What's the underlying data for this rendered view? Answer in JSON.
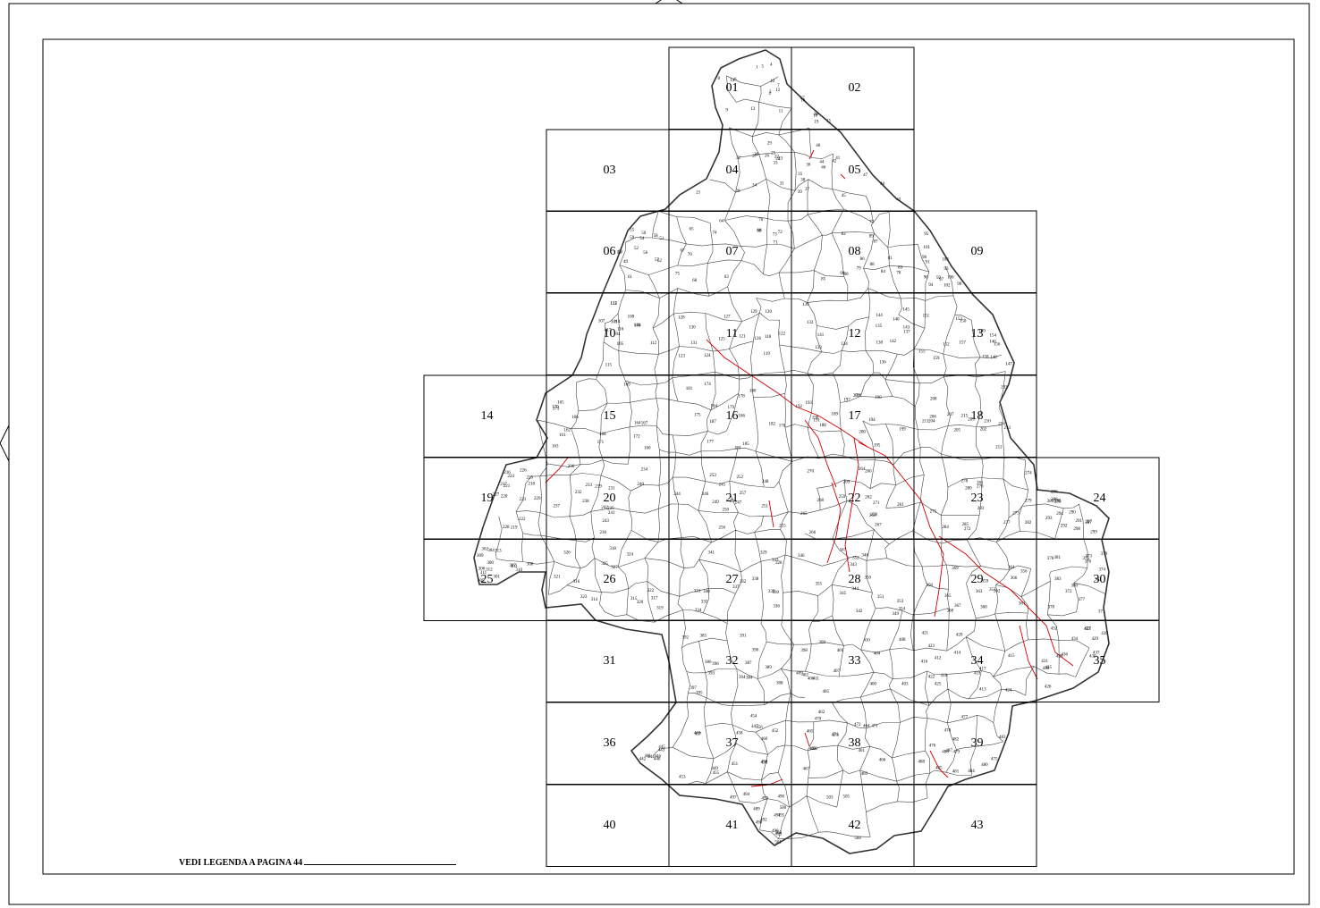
{
  "map": {
    "legend_note": "VEDI LEGENDA A PAGINA 44",
    "tiles": [
      {
        "id": "01",
        "col": 2,
        "row": 0
      },
      {
        "id": "02",
        "col": 3,
        "row": 0
      },
      {
        "id": "03",
        "col": 1,
        "row": 1
      },
      {
        "id": "04",
        "col": 2,
        "row": 1
      },
      {
        "id": "05",
        "col": 3,
        "row": 1
      },
      {
        "id": "06",
        "col": 1,
        "row": 2
      },
      {
        "id": "07",
        "col": 2,
        "row": 2
      },
      {
        "id": "08",
        "col": 3,
        "row": 2
      },
      {
        "id": "09",
        "col": 4,
        "row": 2
      },
      {
        "id": "10",
        "col": 1,
        "row": 3
      },
      {
        "id": "11",
        "col": 2,
        "row": 3
      },
      {
        "id": "12",
        "col": 3,
        "row": 3
      },
      {
        "id": "13",
        "col": 4,
        "row": 3
      },
      {
        "id": "14",
        "col": 0,
        "row": 4
      },
      {
        "id": "15",
        "col": 1,
        "row": 4
      },
      {
        "id": "16",
        "col": 2,
        "row": 4
      },
      {
        "id": "17",
        "col": 3,
        "row": 4
      },
      {
        "id": "18",
        "col": 4,
        "row": 4
      },
      {
        "id": "19",
        "col": 0,
        "row": 5
      },
      {
        "id": "20",
        "col": 1,
        "row": 5
      },
      {
        "id": "21",
        "col": 2,
        "row": 5
      },
      {
        "id": "22",
        "col": 3,
        "row": 5
      },
      {
        "id": "23",
        "col": 4,
        "row": 5
      },
      {
        "id": "24",
        "col": 5,
        "row": 5
      },
      {
        "id": "25",
        "col": 0,
        "row": 6
      },
      {
        "id": "26",
        "col": 1,
        "row": 6
      },
      {
        "id": "27",
        "col": 2,
        "row": 6
      },
      {
        "id": "28",
        "col": 3,
        "row": 6
      },
      {
        "id": "29",
        "col": 4,
        "row": 6
      },
      {
        "id": "30",
        "col": 5,
        "row": 6
      },
      {
        "id": "31",
        "col": 1,
        "row": 7
      },
      {
        "id": "32",
        "col": 2,
        "row": 7
      },
      {
        "id": "33",
        "col": 3,
        "row": 7
      },
      {
        "id": "34",
        "col": 4,
        "row": 7
      },
      {
        "id": "35",
        "col": 5,
        "row": 7
      },
      {
        "id": "36",
        "col": 1,
        "row": 8
      },
      {
        "id": "37",
        "col": 2,
        "row": 8
      },
      {
        "id": "38",
        "col": 3,
        "row": 8
      },
      {
        "id": "39",
        "col": 4,
        "row": 8
      },
      {
        "id": "40",
        "col": 1,
        "row": 9
      },
      {
        "id": "41",
        "col": 2,
        "row": 9
      },
      {
        "id": "42",
        "col": 3,
        "row": 9
      },
      {
        "id": "43",
        "col": 4,
        "row": 9
      }
    ],
    "commune_numbers": [
      "1",
      "2",
      "3",
      "4",
      "5",
      "6",
      "7",
      "8",
      "9",
      "10",
      "11",
      "12",
      "13",
      "14",
      "15",
      "16",
      "17",
      "18",
      "19",
      "20",
      "21",
      "22",
      "23",
      "24",
      "25",
      "26",
      "27",
      "28",
      "29",
      "30",
      "31",
      "32",
      "33",
      "34",
      "35",
      "36",
      "37",
      "38",
      "39",
      "40",
      "41",
      "42",
      "43",
      "44",
      "45",
      "46",
      "47",
      "48",
      "49",
      "50",
      "51",
      "52",
      "53",
      "54",
      "55",
      "56",
      "57",
      "58",
      "59",
      "60",
      "61",
      "62",
      "63",
      "64",
      "65",
      "66",
      "67",
      "68",
      "69",
      "70",
      "71",
      "72",
      "73",
      "74",
      "75",
      "76",
      "77",
      "78",
      "79",
      "80",
      "81",
      "82",
      "83",
      "84",
      "85",
      "86",
      "87",
      "88",
      "89",
      "90",
      "91",
      "92",
      "93",
      "94",
      "95",
      "96",
      "97",
      "98",
      "99",
      "100",
      "101",
      "102",
      "103",
      "104",
      "105",
      "106",
      "107",
      "108",
      "109",
      "110",
      "111",
      "112",
      "113",
      "114",
      "115",
      "116",
      "117",
      "118",
      "119",
      "120",
      "121",
      "122",
      "123",
      "124",
      "125",
      "126",
      "127",
      "128",
      "129",
      "130",
      "131",
      "132",
      "133",
      "134",
      "135",
      "136",
      "137",
      "138",
      "139",
      "140",
      "141",
      "142",
      "143",
      "144",
      "145",
      "146",
      "147",
      "148",
      "149",
      "150",
      "151",
      "152",
      "153",
      "154",
      "155",
      "156",
      "157",
      "158",
      "159",
      "160",
      "161",
      "162",
      "163",
      "164",
      "165",
      "166",
      "167",
      "168",
      "169",
      "170",
      "171",
      "172",
      "173",
      "174",
      "175",
      "176",
      "177",
      "178",
      "179",
      "180",
      "181",
      "182",
      "183",
      "184",
      "185",
      "186",
      "187",
      "188",
      "189",
      "190",
      "191",
      "192",
      "193",
      "194",
      "195",
      "196",
      "197",
      "198",
      "199",
      "200",
      "201",
      "202",
      "203",
      "204",
      "205",
      "206",
      "207",
      "208",
      "209",
      "210",
      "211",
      "212",
      "213",
      "214",
      "215",
      "216",
      "217",
      "218",
      "219",
      "220",
      "221",
      "222",
      "223",
      "224",
      "225",
      "226",
      "227",
      "228",
      "229",
      "230",
      "231",
      "232",
      "233",
      "234",
      "235",
      "236",
      "237",
      "238",
      "239",
      "240",
      "241",
      "242",
      "243",
      "244",
      "245",
      "246",
      "247",
      "248",
      "249",
      "250",
      "251",
      "252",
      "253",
      "254",
      "255",
      "256",
      "257",
      "258",
      "259",
      "260",
      "261",
      "262",
      "263",
      "264",
      "265",
      "266",
      "267",
      "268",
      "269",
      "270",
      "271",
      "272",
      "273",
      "274",
      "275",
      "276",
      "277",
      "278",
      "279",
      "280",
      "281",
      "282",
      "283",
      "284",
      "285",
      "286",
      "287",
      "288",
      "289",
      "290",
      "291",
      "292",
      "293",
      "294",
      "295",
      "296",
      "297",
      "298",
      "299",
      "300",
      "301",
      "302",
      "303",
      "304",
      "305",
      "306",
      "307",
      "308",
      "309",
      "310",
      "311",
      "312",
      "313",
      "314",
      "315",
      "316",
      "317",
      "318",
      "319",
      "320",
      "321",
      "322",
      "323",
      "324",
      "325",
      "326",
      "327",
      "328",
      "329",
      "330",
      "331",
      "332",
      "333",
      "334",
      "335",
      "336",
      "337",
      "338",
      "339",
      "340",
      "341",
      "342",
      "343",
      "344",
      "345",
      "346",
      "347",
      "348",
      "349",
      "350",
      "351",
      "352",
      "353",
      "354",
      "355",
      "356",
      "357",
      "358",
      "359",
      "360",
      "361",
      "362",
      "363",
      "364",
      "365",
      "366",
      "367",
      "368",
      "369",
      "370",
      "371",
      "372",
      "373",
      "374",
      "375",
      "376",
      "377",
      "378",
      "379",
      "380",
      "381",
      "382",
      "383",
      "384",
      "385",
      "386",
      "387",
      "388",
      "389",
      "390",
      "391",
      "392",
      "393",
      "394",
      "395",
      "396",
      "397",
      "398",
      "399",
      "400",
      "401",
      "402",
      "403",
      "404",
      "405",
      "406",
      "407",
      "408",
      "409",
      "410",
      "411",
      "412",
      "413",
      "414",
      "415",
      "416",
      "417",
      "418",
      "419",
      "420",
      "421",
      "422",
      "423",
      "424",
      "425",
      "426",
      "427",
      "428",
      "429",
      "430",
      "431",
      "432",
      "433",
      "434",
      "435",
      "436",
      "437",
      "438",
      "439",
      "440",
      "441",
      "442",
      "443",
      "444",
      "445",
      "446",
      "447",
      "448",
      "449",
      "450",
      "451",
      "452",
      "453",
      "454",
      "455",
      "456",
      "457",
      "458",
      "459",
      "460",
      "461",
      "462",
      "463",
      "464",
      "465",
      "466",
      "467",
      "468",
      "469",
      "470",
      "471",
      "472",
      "473",
      "474",
      "475",
      "476",
      "477",
      "478",
      "479",
      "480",
      "481",
      "482",
      "483",
      "484",
      "485",
      "486",
      "487",
      "488",
      "489",
      "490",
      "491",
      "492",
      "493",
      "494",
      "495",
      "496",
      "497",
      "498",
      "499",
      "500",
      "501",
      "502",
      "503",
      "504",
      "505"
    ],
    "colors": {
      "border": "#000000",
      "region": "#333333",
      "feature": "#d00000"
    }
  }
}
